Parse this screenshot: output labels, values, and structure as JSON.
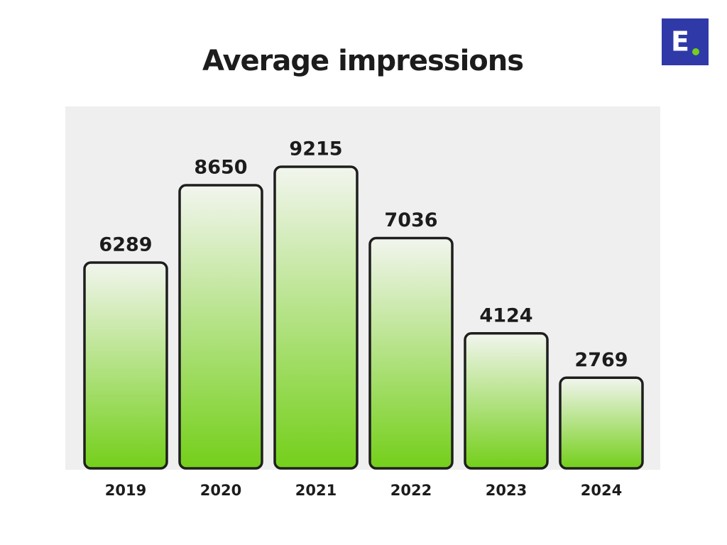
{
  "chart_data": {
    "type": "bar",
    "title": "Average impressions",
    "categories": [
      "2019",
      "2020",
      "2021",
      "2022",
      "2023",
      "2024"
    ],
    "values": [
      6289,
      8650,
      9215,
      7036,
      4124,
      2769
    ],
    "color": "#74cf1a"
  },
  "logo": "E"
}
